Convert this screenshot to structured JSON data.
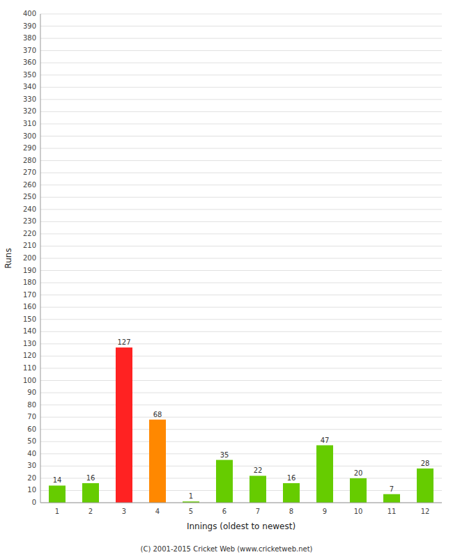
{
  "chart_data": {
    "type": "bar",
    "xlabel": "Innings (oldest to newest)",
    "ylabel": "Runs",
    "categories": [
      1,
      2,
      3,
      4,
      5,
      6,
      7,
      8,
      9,
      10,
      11,
      12
    ],
    "values": [
      14,
      16,
      127,
      68,
      1,
      35,
      22,
      16,
      47,
      20,
      7,
      28
    ],
    "colors": [
      "#66cc00",
      "#66cc00",
      "#ff2222",
      "#ff8800",
      "#66cc00",
      "#66cc00",
      "#66cc00",
      "#66cc00",
      "#66cc00",
      "#66cc00",
      "#66cc00",
      "#66cc00"
    ],
    "ylim": [
      0,
      400
    ],
    "yticks": [
      0,
      10,
      20,
      30,
      40,
      50,
      60,
      70,
      80,
      90,
      100,
      110,
      120,
      130,
      140,
      150,
      160,
      170,
      180,
      190,
      200,
      210,
      220,
      230,
      240,
      250,
      260,
      270,
      280,
      290,
      300,
      310,
      320,
      330,
      340,
      350,
      360,
      370,
      380,
      390,
      400
    ],
    "grid": true,
    "data_labels": true,
    "annotations": [
      "(C) 2001-2015 Cricket Web (www.cricketweb.net)"
    ]
  }
}
